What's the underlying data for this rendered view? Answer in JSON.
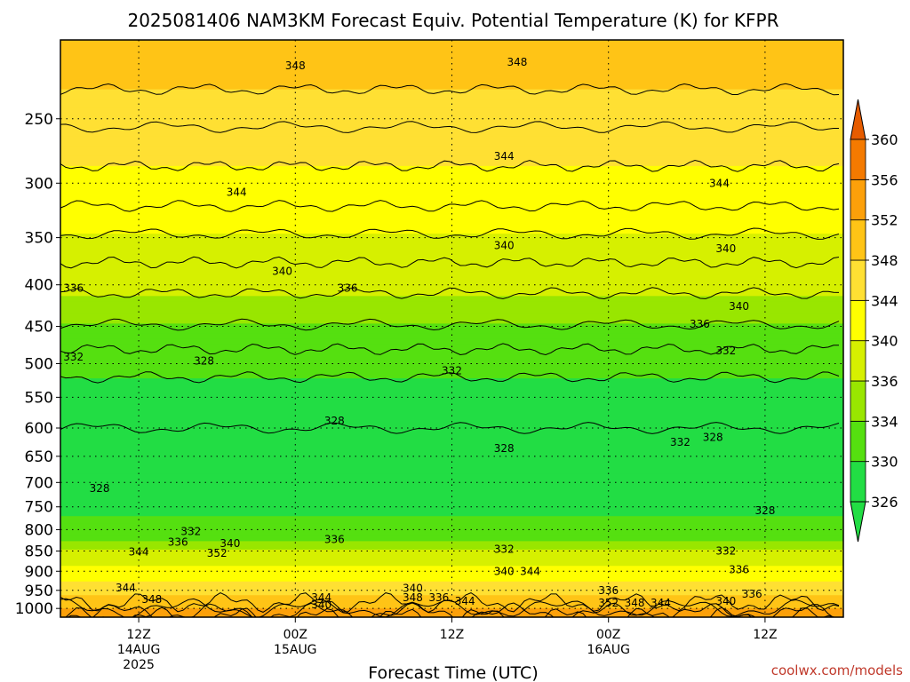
{
  "chart_data": {
    "type": "contour",
    "title": "2025081406 NAM3KM Forecast Equiv. Potential Temperature (K) for KFPR",
    "xlabel": "Forecast Time (UTC)",
    "ylabel": "",
    "y_scale": "log-pressure",
    "y_ticks": [
      250,
      300,
      350,
      400,
      450,
      500,
      550,
      600,
      650,
      700,
      750,
      800,
      850,
      900,
      950,
      1000
    ],
    "y_range": [
      1025,
      200
    ],
    "x_ticks": [
      {
        "label": "12Z",
        "sub1": "14AUG",
        "sub2": "2025",
        "hour": 6
      },
      {
        "label": "00Z",
        "sub1": "15AUG",
        "sub2": "",
        "hour": 18
      },
      {
        "label": "12Z",
        "sub1": "",
        "sub2": "",
        "hour": 30
      },
      {
        "label": "00Z",
        "sub1": "16AUG",
        "sub2": "",
        "hour": 42
      },
      {
        "label": "12Z",
        "sub1": "",
        "sub2": "",
        "hour": 54
      }
    ],
    "x_range": [
      0,
      60
    ],
    "grid": "dotted",
    "colorbar": {
      "ticks": [
        326,
        330,
        334,
        336,
        340,
        344,
        348,
        352,
        356,
        360
      ],
      "bands": [
        {
          "from": 326,
          "color": "#22dd44"
        },
        {
          "from": 330,
          "color": "#55e010"
        },
        {
          "from": 334,
          "color": "#99e600"
        },
        {
          "from": 336,
          "color": "#d6f000"
        },
        {
          "from": 340,
          "color": "#ffff00"
        },
        {
          "from": 344,
          "color": "#ffe033"
        },
        {
          "from": 348,
          "color": "#ffc416"
        },
        {
          "from": 352,
          "color": "#fca00a"
        },
        {
          "from": 356,
          "color": "#f47a00"
        },
        {
          "from": 360,
          "color": "#e65c00"
        }
      ],
      "under_color": "#22dd44",
      "over_color": "#e65c00"
    },
    "levels": [
      {
        "p": 200,
        "theta": 349
      },
      {
        "p": 230,
        "theta": 348
      },
      {
        "p": 270,
        "theta": 345
      },
      {
        "p": 320,
        "theta": 342
      },
      {
        "p": 360,
        "theta": 339
      },
      {
        "p": 400,
        "theta": 336.5
      },
      {
        "p": 440,
        "theta": 334.5
      },
      {
        "p": 480,
        "theta": 332
      },
      {
        "p": 530,
        "theta": 329.5
      },
      {
        "p": 600,
        "theta": 328
      },
      {
        "p": 700,
        "theta": 328.5
      },
      {
        "p": 770,
        "theta": 330
      },
      {
        "p": 820,
        "theta": 333
      },
      {
        "p": 860,
        "theta": 337
      },
      {
        "p": 900,
        "theta": 341
      },
      {
        "p": 940,
        "theta": 345
      },
      {
        "p": 975,
        "theta": 349
      },
      {
        "p": 1000,
        "theta": 352
      },
      {
        "p": 1025,
        "theta": 356
      }
    ],
    "contour_labels": [
      {
        "text": "348",
        "hour": 18,
        "p": 215
      },
      {
        "text": "348",
        "hour": 35,
        "p": 213
      },
      {
        "text": "344",
        "hour": 34,
        "p": 278
      },
      {
        "text": "344",
        "hour": 13.5,
        "p": 308
      },
      {
        "text": "344",
        "hour": 50.5,
        "p": 300
      },
      {
        "text": "340",
        "hour": 34,
        "p": 358
      },
      {
        "text": "340",
        "hour": 17,
        "p": 385
      },
      {
        "text": "340",
        "hour": 51,
        "p": 361
      },
      {
        "text": "340",
        "hour": 52,
        "p": 425
      },
      {
        "text": "336",
        "hour": 1,
        "p": 404
      },
      {
        "text": "336",
        "hour": 22,
        "p": 404
      },
      {
        "text": "336",
        "hour": 49,
        "p": 447
      },
      {
        "text": "332",
        "hour": 1,
        "p": 491
      },
      {
        "text": "332",
        "hour": 30,
        "p": 510
      },
      {
        "text": "332",
        "hour": 51,
        "p": 482
      },
      {
        "text": "328",
        "hour": 11,
        "p": 496
      },
      {
        "text": "328",
        "hour": 21,
        "p": 588
      },
      {
        "text": "328",
        "hour": 34,
        "p": 636
      },
      {
        "text": "328",
        "hour": 3,
        "p": 712
      },
      {
        "text": "332",
        "hour": 47.5,
        "p": 625
      },
      {
        "text": "328",
        "hour": 50,
        "p": 616
      },
      {
        "text": "328",
        "hour": 54,
        "p": 758
      },
      {
        "text": "332",
        "hour": 10,
        "p": 804
      },
      {
        "text": "336",
        "hour": 9,
        "p": 829
      },
      {
        "text": "340",
        "hour": 13,
        "p": 832
      },
      {
        "text": "344",
        "hour": 6,
        "p": 852
      },
      {
        "text": "352",
        "hour": 12,
        "p": 855
      },
      {
        "text": "336",
        "hour": 21,
        "p": 823
      },
      {
        "text": "332",
        "hour": 34,
        "p": 846
      },
      {
        "text": "332",
        "hour": 51,
        "p": 850
      },
      {
        "text": "336",
        "hour": 52,
        "p": 896
      },
      {
        "text": "340",
        "hour": 34,
        "p": 900
      },
      {
        "text": "344",
        "hour": 36,
        "p": 900
      },
      {
        "text": "344",
        "hour": 5,
        "p": 943
      },
      {
        "text": "348",
        "hour": 7,
        "p": 975
      },
      {
        "text": "340",
        "hour": 27,
        "p": 945
      },
      {
        "text": "348",
        "hour": 27,
        "p": 970
      },
      {
        "text": "336",
        "hour": 29,
        "p": 970
      },
      {
        "text": "344",
        "hour": 31,
        "p": 980
      },
      {
        "text": "344",
        "hour": 20,
        "p": 970
      },
      {
        "text": "340",
        "hour": 20,
        "p": 990
      },
      {
        "text": "336",
        "hour": 42,
        "p": 950
      },
      {
        "text": "352",
        "hour": 42,
        "p": 985
      },
      {
        "text": "348",
        "hour": 44,
        "p": 985
      },
      {
        "text": "344",
        "hour": 46,
        "p": 985
      },
      {
        "text": "340",
        "hour": 51,
        "p": 980
      },
      {
        "text": "336",
        "hour": 53,
        "p": 960
      }
    ]
  },
  "credit": "coolwx.com/models"
}
